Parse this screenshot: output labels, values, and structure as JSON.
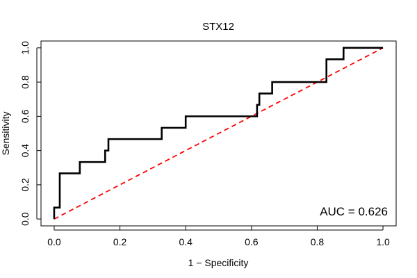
{
  "chart_data": {
    "type": "line",
    "title": "STX12",
    "xlabel": "1 − Specificity",
    "ylabel": "Sensitivity",
    "xlim": [
      -0.04,
      1.04
    ],
    "ylim": [
      -0.04,
      1.04
    ],
    "x_ticks": [
      "0.0",
      "0.2",
      "0.4",
      "0.6",
      "0.8",
      "1.0"
    ],
    "y_ticks": [
      "0.0",
      "0.2",
      "0.4",
      "0.6",
      "0.8",
      "1.0"
    ],
    "grid": false,
    "legend": "none",
    "annotation": "AUC = 0.626",
    "series": [
      {
        "style": "step",
        "color": "#000000",
        "x": [
          0.0,
          0.0,
          0.017,
          0.017,
          0.017,
          0.078,
          0.078,
          0.155,
          0.155,
          0.165,
          0.165,
          0.327,
          0.327,
          0.4,
          0.4,
          0.617,
          0.617,
          0.624,
          0.624,
          0.663,
          0.663,
          0.828,
          0.828,
          0.88,
          0.88,
          1.0
        ],
        "y": [
          0.0,
          0.067,
          0.067,
          0.2,
          0.267,
          0.267,
          0.333,
          0.333,
          0.4,
          0.4,
          0.467,
          0.467,
          0.533,
          0.533,
          0.6,
          0.6,
          0.667,
          0.667,
          0.733,
          0.733,
          0.8,
          0.8,
          0.933,
          0.933,
          1.0,
          1.0
        ]
      },
      {
        "style": "dashed",
        "color": "#ff0000",
        "x": [
          0.0,
          1.0
        ],
        "y": [
          0.0,
          1.0
        ]
      }
    ]
  }
}
